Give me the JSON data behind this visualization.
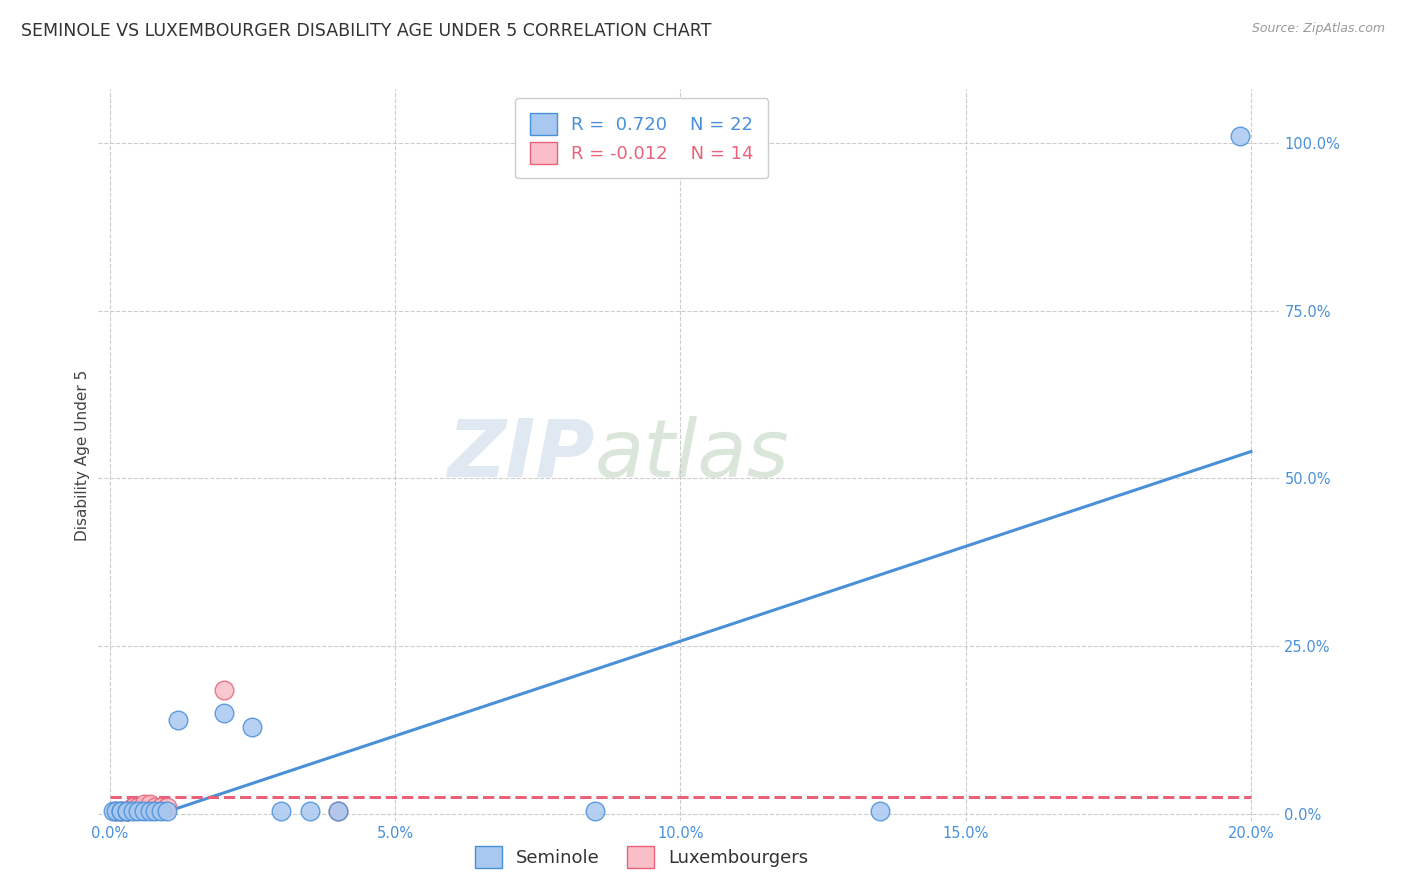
{
  "title": "SEMINOLE VS LUXEMBOURGER DISABILITY AGE UNDER 5 CORRELATION CHART",
  "source": "Source: ZipAtlas.com",
  "ylabel": "Disability Age Under 5",
  "xlabel_ticks": [
    "0.0%",
    "5.0%",
    "10.0%",
    "15.0%",
    "20.0%"
  ],
  "xlabel_vals": [
    0.0,
    0.05,
    0.1,
    0.15,
    0.2
  ],
  "ylabel_ticks": [
    "0.0%",
    "25.0%",
    "50.0%",
    "75.0%",
    "100.0%"
  ],
  "ylabel_vals": [
    0.0,
    0.25,
    0.5,
    0.75,
    1.0
  ],
  "xlim": [
    -0.002,
    0.205
  ],
  "ylim": [
    -0.01,
    1.08
  ],
  "seminole_color": "#A8C8F0",
  "luxembourger_color": "#F9BEC8",
  "seminole_line_color": "#4A90D9",
  "luxembourger_line_color": "#E8637A",
  "seminole_R": 0.72,
  "seminole_N": 22,
  "luxembourger_R": -0.012,
  "luxembourger_N": 14,
  "seminole_x": [
    0.0005,
    0.001,
    0.002,
    0.002,
    0.003,
    0.003,
    0.004,
    0.005,
    0.006,
    0.007,
    0.008,
    0.009,
    0.01,
    0.012,
    0.02,
    0.025,
    0.03,
    0.035,
    0.04,
    0.085,
    0.135,
    0.198
  ],
  "seminole_y": [
    0.005,
    0.005,
    0.005,
    0.005,
    0.005,
    0.005,
    0.005,
    0.005,
    0.005,
    0.005,
    0.005,
    0.005,
    0.005,
    0.14,
    0.15,
    0.13,
    0.005,
    0.005,
    0.005,
    0.005,
    0.005,
    1.01
  ],
  "luxembourger_x": [
    0.001,
    0.002,
    0.003,
    0.003,
    0.004,
    0.004,
    0.005,
    0.006,
    0.007,
    0.008,
    0.009,
    0.01,
    0.02,
    0.04
  ],
  "luxembourger_y": [
    0.005,
    0.005,
    0.005,
    0.005,
    0.01,
    0.01,
    0.01,
    0.015,
    0.015,
    0.01,
    0.01,
    0.01,
    0.185,
    0.005
  ],
  "seminole_line": [
    0.0,
    0.2,
    -0.025,
    0.54
  ],
  "luxembourger_line": [
    0.0,
    0.2,
    0.025,
    0.025
  ],
  "watermark_zip": "ZIP",
  "watermark_atlas": "atlas",
  "background_color": "#ffffff",
  "grid_color": "#cccccc",
  "title_fontsize": 12.5,
  "axis_label_fontsize": 11,
  "tick_fontsize": 10.5,
  "legend_fontsize": 13
}
